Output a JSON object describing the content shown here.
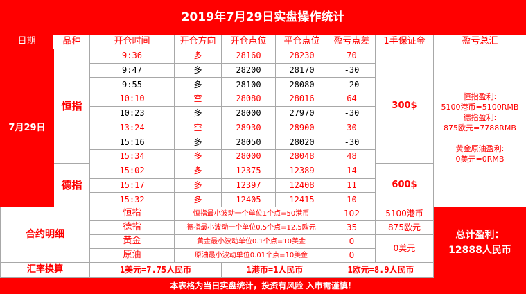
{
  "title": "2019年7月29日实盘操作统计",
  "headers": {
    "date": "日期",
    "product": "品种",
    "open_time": "开仓时间",
    "direction": "开仓方向",
    "open_price": "开仓点位",
    "close_price": "平仓点位",
    "pnl_points": "盈亏点差",
    "margin": "1手保证金",
    "total": "盈亏总汇"
  },
  "date": "7月29日",
  "products": {
    "hsi": "恒指",
    "dax": "德指"
  },
  "trades": [
    {
      "time": "9:36",
      "dir": "多",
      "open": "28160",
      "close": "28230",
      "pnl": "70",
      "color": "red"
    },
    {
      "time": "9:47",
      "dir": "多",
      "open": "28200",
      "close": "28170",
      "pnl": "-30",
      "color": "black"
    },
    {
      "time": "9:55",
      "dir": "多",
      "open": "28100",
      "close": "28080",
      "pnl": "-20",
      "color": "black"
    },
    {
      "time": "10:10",
      "dir": "空",
      "open": "28080",
      "close": "28016",
      "pnl": "64",
      "color": "red"
    },
    {
      "time": "10:23",
      "dir": "多",
      "open": "28000",
      "close": "27970",
      "pnl": "-30",
      "color": "black"
    },
    {
      "time": "13:24",
      "dir": "空",
      "open": "28930",
      "close": "28900",
      "pnl": "30",
      "color": "red"
    },
    {
      "time": "15:16",
      "dir": "多",
      "open": "28050",
      "close": "28020",
      "pnl": "-30",
      "color": "black"
    },
    {
      "time": "15:34",
      "dir": "多",
      "open": "28000",
      "close": "28048",
      "pnl": "48",
      "color": "red"
    },
    {
      "time": "15:02",
      "dir": "多",
      "open": "12375",
      "close": "12389",
      "pnl": "14",
      "color": "red"
    },
    {
      "time": "15:17",
      "dir": "多",
      "open": "12397",
      "close": "12408",
      "pnl": "11",
      "color": "red"
    },
    {
      "time": "15:32",
      "dir": "多",
      "open": "12405",
      "close": "12415",
      "pnl": "10",
      "color": "red"
    }
  ],
  "margins": {
    "hsi": "300$",
    "dax": "600$"
  },
  "summary": {
    "line1": "恒指盈利:",
    "line2": "5100港币=5100RMB",
    "line3": "德指盈利:",
    "line4": "875欧元=7788RMB",
    "line5": "黄金原油盈利:",
    "line6": "0美元=0RMB"
  },
  "contract": {
    "label": "合约明细",
    "rows": [
      {
        "name": "恒指",
        "desc": "恒指最小波动一个单位1个点=50港币",
        "points": "102",
        "amount": "5100港币"
      },
      {
        "name": "德指",
        "desc": "德指最小波动一个单位0.5个点=12.5欧元",
        "points": "35",
        "amount": "875欧元"
      },
      {
        "name": "黄金",
        "desc": "黄金最小波动单位0.1个点=10美金",
        "points": "0",
        "amount": ""
      },
      {
        "name": "原油",
        "desc": "原油最小波动单位0.01个点=10美金",
        "points": "0",
        "amount": ""
      }
    ],
    "gold_oil_amount": "0美元"
  },
  "grand_total": {
    "line1": "总计盈利：",
    "line2": "12888人民币"
  },
  "fx": {
    "label": "汇率换算",
    "usd": "1美元=7.75人民币",
    "hkd": "1港币=1人民币",
    "eur": "1欧元=8.9人民币"
  },
  "footer": "本表格为当日实盘统计，投资有风险 入市需谨慎！",
  "colors": {
    "accent": "#ff0000",
    "text_red": "#ff0000",
    "text_black": "#000000"
  }
}
